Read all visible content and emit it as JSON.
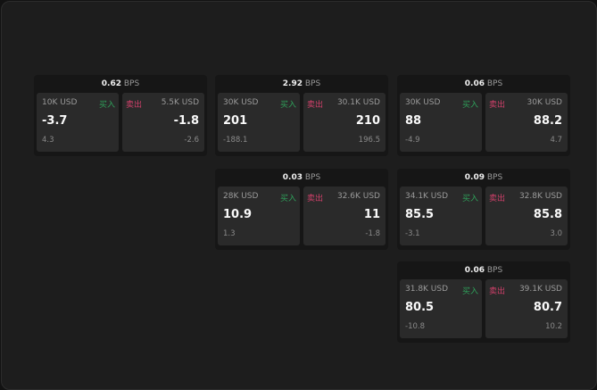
{
  "labels": {
    "buy": "买入",
    "sell": "卖出",
    "unit": "BPS"
  },
  "colors": {
    "buy": "#2fa05a",
    "sell": "#d0406a"
  },
  "cards": [
    {
      "spread": "0.62",
      "bid": {
        "qty": "10K USD",
        "price": "-3.7",
        "change": "4.3"
      },
      "ask": {
        "qty": "5.5K USD",
        "price": "-1.8",
        "change": "-2.6"
      }
    },
    {
      "spread": "2.92",
      "bid": {
        "qty": "30K USD",
        "price": "201",
        "change": "-188.1"
      },
      "ask": {
        "qty": "30.1K USD",
        "price": "210",
        "change": "196.5"
      }
    },
    {
      "spread": "0.06",
      "bid": {
        "qty": "30K USD",
        "price": "88",
        "change": "-4.9"
      },
      "ask": {
        "qty": "30K USD",
        "price": "88.2",
        "change": "4.7"
      }
    },
    {
      "spread": "0.03",
      "bid": {
        "qty": "28K USD",
        "price": "10.9",
        "change": "1.3"
      },
      "ask": {
        "qty": "32.6K USD",
        "price": "11",
        "change": "-1.8"
      }
    },
    {
      "spread": "0.09",
      "bid": {
        "qty": "34.1K USD",
        "price": "85.5",
        "change": "-3.1"
      },
      "ask": {
        "qty": "32.8K USD",
        "price": "85.8",
        "change": "3.0"
      }
    },
    {
      "spread": "0.06",
      "bid": {
        "qty": "31.8K USD",
        "price": "80.5",
        "change": "-10.8"
      },
      "ask": {
        "qty": "39.1K USD",
        "price": "80.7",
        "change": "10.2"
      }
    }
  ]
}
